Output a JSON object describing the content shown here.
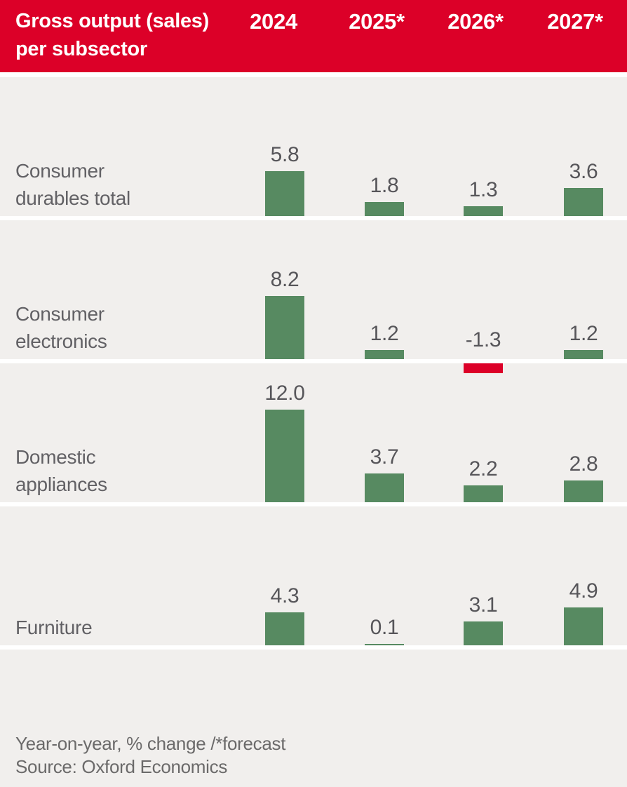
{
  "header": {
    "title_line1": "Gross output (sales)",
    "title_line2": "per subsector",
    "columns": [
      "2024",
      "2025*",
      "2026*",
      "2027*"
    ],
    "background_color": "#dc0028",
    "text_color": "#ffffff"
  },
  "chart_data": {
    "type": "bar",
    "title": "Gross output (sales) per subsector",
    "unit": "year-on-year % change",
    "categories": [
      "2024",
      "2025*",
      "2026*",
      "2027*"
    ],
    "series": [
      {
        "name": "Consumer durables total",
        "label_lines": [
          "Consumer",
          "durables total"
        ],
        "values": [
          5.8,
          1.8,
          1.3,
          3.6
        ]
      },
      {
        "name": "Consumer electronics",
        "label_lines": [
          "Consumer",
          "electronics"
        ],
        "values": [
          8.2,
          1.2,
          -1.3,
          1.2
        ]
      },
      {
        "name": "Domestic appliances",
        "label_lines": [
          "Domestic",
          "appliances"
        ],
        "values": [
          12.0,
          3.7,
          2.2,
          2.8
        ]
      },
      {
        "name": "Furniture",
        "label_lines": [
          "Furniture"
        ],
        "values": [
          4.3,
          0.1,
          3.1,
          4.9
        ]
      }
    ],
    "positive_color": "#578a61",
    "negative_color": "#dc0028",
    "background_color": "#f1efed",
    "separator_color": "#ffffff",
    "value_decimals": 1,
    "legend": "none",
    "grid": "off"
  },
  "footer": {
    "note": "Year-on-year, % change /*forecast",
    "source": "Source: Oxford Economics"
  }
}
